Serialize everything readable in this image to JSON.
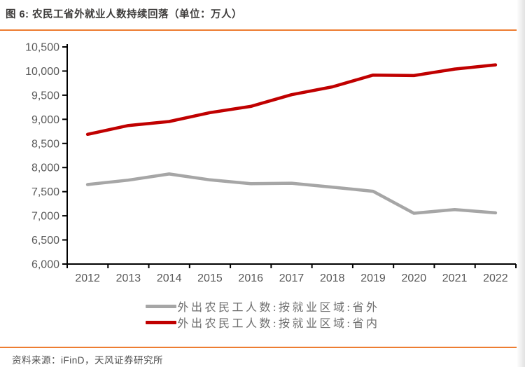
{
  "page": {
    "title": "图 6: 农民工省外就业人数持续回落（单位：万人）",
    "source_label": "资料来源：iFinD，天风证券研究所",
    "accent_color": "#ED7D31"
  },
  "chart_data": {
    "type": "line",
    "title": "农民工省外就业人数持续回落",
    "unit": "万人",
    "categories": [
      "2012",
      "2013",
      "2014",
      "2015",
      "2016",
      "2017",
      "2018",
      "2019",
      "2020",
      "2021",
      "2022"
    ],
    "series": [
      {
        "name": "外出农民工人数:按就业区域:省外",
        "color": "#A6A6A6",
        "values": [
          7647,
          7739,
          7867,
          7745,
          7666,
          7675,
          7594,
          7508,
          7052,
          7130,
          7061
        ]
      },
      {
        "name": "外出农民工人数:按就业区域:省内",
        "color": "#C00000",
        "values": [
          8689,
          8871,
          8954,
          9139,
          9268,
          9510,
          9672,
          9917,
          9907,
          10042,
          10129
        ]
      }
    ],
    "ylim": [
      6000,
      10500
    ],
    "ytick_step": 500,
    "ytick_labels": [
      "6,000",
      "6,500",
      "7,000",
      "7,500",
      "8,000",
      "8,500",
      "9,000",
      "9,500",
      "10,000",
      "10,500"
    ],
    "grid": false,
    "legend_position": "bottom",
    "axis_color": "#000000",
    "tick_label_color": "#595959"
  }
}
